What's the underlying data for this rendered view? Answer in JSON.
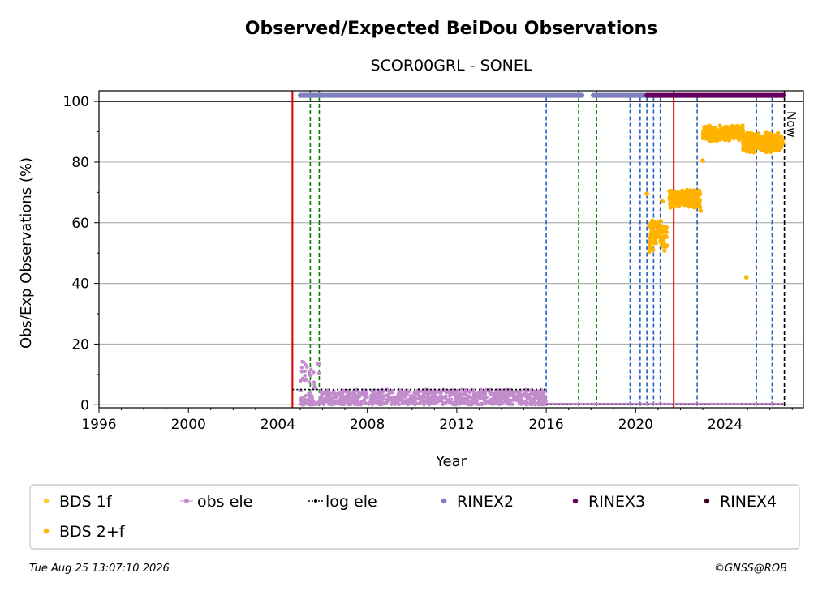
{
  "chart_data": {
    "type": "scatter",
    "title": "Observed/Expected BeiDou Observations",
    "subtitle": "SCOR00GRL - SONEL",
    "xlabel": "Year",
    "ylabel": "Obs/Exp Observations (%)",
    "xlim": [
      1996,
      2027.5
    ],
    "ylim": [
      -1,
      103.5
    ],
    "xticks": [
      1996,
      2000,
      2004,
      2008,
      2012,
      2016,
      2020,
      2024
    ],
    "yticks": [
      0,
      20,
      40,
      60,
      80,
      100
    ],
    "grid": "horizontal",
    "now_label": "Now",
    "now_x": 2026.65,
    "legend_position": "below",
    "colors": {
      "bds1f": "#ffcc33",
      "bds2f": "#ffb300",
      "obs_ele": "#c28ccc",
      "log_ele": "#000000",
      "rinex2": "#7f7fbf",
      "rinex3": "#66005f",
      "rinex4": "#330022",
      "receiver_change": "#1f5fbf",
      "antenna_change": "#008000",
      "station_event": "#dd0000"
    },
    "series": [
      {
        "name": "BDS 1f",
        "values": []
      },
      {
        "name": "BDS 2+f",
        "segments": [
          {
            "x": [
              2020.6,
              2021.4
            ],
            "y_min": 48,
            "y_max": 63
          },
          {
            "x": [
              2021.5,
              2022.9
            ],
            "y_min": 64,
            "y_max": 72
          },
          {
            "x": [
              2023.0,
              2024.8
            ],
            "y_min": 86,
            "y_max": 93
          },
          {
            "x": [
              2024.8,
              2026.6
            ],
            "y_min": 82,
            "y_max": 91
          }
        ],
        "points": [
          [
            2020.5,
            69.5
          ],
          [
            2021.2,
            67
          ],
          [
            2022.9,
            64
          ],
          [
            2023.0,
            80.5
          ],
          [
            2024.95,
            42
          ]
        ]
      },
      {
        "name": "obs ele",
        "segments": [
          {
            "x": [
              2005.0,
              2005.9
            ],
            "y_min": 0,
            "y_max": 14.5
          },
          {
            "x": [
              2005.9,
              2016.0
            ],
            "y_min": 0,
            "y_max": 5
          }
        ]
      },
      {
        "name": "log ele",
        "steps": [
          {
            "x": [
              2004.65,
              2005.0
            ],
            "y": 5
          },
          {
            "x": [
              2005.0,
              2016.0
            ],
            "y": 5
          },
          {
            "x": [
              2016.0,
              2026.65
            ],
            "y": 0
          }
        ]
      },
      {
        "name": "RINEX2",
        "ranges": [
          [
            2005.0,
            2017.6
          ],
          [
            2018.1,
            2020.5
          ]
        ],
        "y": 102
      },
      {
        "name": "RINEX3",
        "ranges": [
          [
            2020.5,
            2026.6
          ]
        ],
        "y": 102
      },
      {
        "name": "RINEX4",
        "ranges": [],
        "y": 102
      }
    ],
    "event_lines": {
      "receiver_change": [
        2016.0,
        2019.75,
        2020.2,
        2020.5,
        2020.8,
        2021.1,
        2022.75,
        2025.4,
        2026.1
      ],
      "antenna_change": [
        2004.65,
        2005.45,
        2005.85,
        2017.45,
        2018.25
      ],
      "station_event": [
        2004.65,
        2021.7
      ]
    },
    "legend": [
      {
        "label": "BDS 1f",
        "marker": "dot",
        "color_key": "bds1f"
      },
      {
        "label": "obs ele",
        "marker": "line-dot",
        "color_key": "obs_ele"
      },
      {
        "label": "log ele",
        "marker": "dotted-dot",
        "color_key": "log_ele"
      },
      {
        "label": "RINEX2",
        "marker": "dot",
        "color_key": "rinex2"
      },
      {
        "label": "RINEX3",
        "marker": "dot",
        "color_key": "rinex3"
      },
      {
        "label": "RINEX4",
        "marker": "dot",
        "color_key": "rinex4"
      },
      {
        "label": "BDS 2+f",
        "marker": "dot",
        "color_key": "bds2f"
      }
    ]
  },
  "footer": {
    "timestamp": "Tue Aug 25 13:07:10 2026",
    "credit": "©GNSS@ROB"
  }
}
